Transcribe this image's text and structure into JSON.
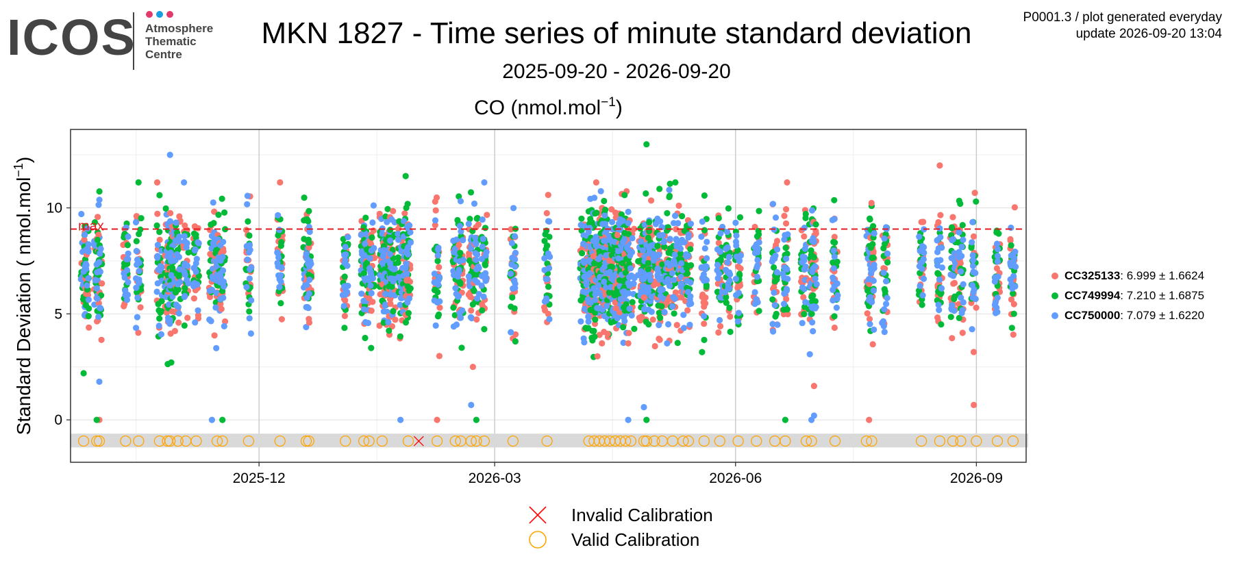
{
  "logo": {
    "text": "ICOS",
    "sub": [
      "Atmosphere",
      "Thematic",
      "Centre"
    ],
    "dots": [
      "#e23a6b",
      "#1a9ee0",
      "#e23a6b"
    ]
  },
  "header": {
    "title": "MKN 1827 - Time series of minute standard deviation",
    "subtitle": "2025-09-20 - 2026-09-20",
    "plot_id": "P0001.3 / plot generated everyday",
    "update": "update  2026-09-20 13:04"
  },
  "chart_data": {
    "type": "scatter",
    "panel_title": "CO (nmol.mol",
    "panel_title_sup": "−1",
    "panel_title_end": ")",
    "ylabel": "Standard Deviation ( nmol.mol",
    "ylabel_sup": "−1",
    "ylabel_end": ")",
    "ylim": [
      -2,
      13.7
    ],
    "yticks": [
      0,
      5,
      10
    ],
    "x_range": [
      "2025-09-20",
      "2026-09-20"
    ],
    "xticks": [
      {
        "label": "2025-12",
        "date": "2025-12-01"
      },
      {
        "label": "2026-03",
        "date": "2026-03-01"
      },
      {
        "label": "2026-06",
        "date": "2026-06-01"
      },
      {
        "label": "2026-09",
        "date": "2026-09-01"
      }
    ],
    "grid": true,
    "max_line": {
      "label": "max",
      "value": 9,
      "color": "#e41a1c"
    },
    "calibration_band": [
      -1.3,
      -0.65
    ],
    "series": [
      {
        "name": "CC325133",
        "stats": ": 6.999 ± 1.6624",
        "color": "#f8766d",
        "mean": 6.999,
        "sd": 1.6624
      },
      {
        "name": "CC749994",
        "stats": ": 7.210 ± 1.6875",
        "color": "#00ba38",
        "mean": 7.21,
        "sd": 1.6875
      },
      {
        "name": "CC750000",
        "stats": ": 7.079 ± 1.6220",
        "color": "#619cff",
        "mean": 7.079,
        "sd": 1.622
      }
    ],
    "measurement_dates": [
      "2025-09-25",
      "2025-09-26",
      "2025-09-30",
      "2025-10-01",
      "2025-10-11",
      "2025-10-16",
      "2025-10-24",
      "2025-10-27",
      "2025-10-28",
      "2025-10-29",
      "2025-10-31",
      "2025-11-03",
      "2025-11-07",
      "2025-11-13",
      "2025-11-15",
      "2025-11-17",
      "2025-11-27",
      "2025-12-09",
      "2025-12-19",
      "2025-12-20",
      "2026-01-03",
      "2026-01-10",
      "2026-01-11",
      "2026-01-13",
      "2026-01-17",
      "2026-01-18",
      "2026-01-20",
      "2026-01-21",
      "2026-01-24",
      "2026-01-26",
      "2026-01-27",
      "2026-02-07",
      "2026-02-14",
      "2026-02-16",
      "2026-02-20",
      "2026-02-22",
      "2026-02-25",
      "2026-03-08",
      "2026-03-21",
      "2026-04-05",
      "2026-04-06",
      "2026-04-08",
      "2026-04-10",
      "2026-04-12",
      "2026-04-14",
      "2026-04-16",
      "2026-04-18",
      "2026-04-19",
      "2026-04-21",
      "2026-04-27",
      "2026-04-28",
      "2026-05-01",
      "2026-05-04",
      "2026-05-08",
      "2026-05-12",
      "2026-05-14",
      "2026-05-20",
      "2026-05-26",
      "2026-05-29",
      "2026-06-02",
      "2026-06-09",
      "2026-06-16",
      "2026-06-20",
      "2026-06-27",
      "2026-06-30",
      "2026-07-01",
      "2026-07-09",
      "2026-07-22",
      "2026-07-23",
      "2026-07-28",
      "2026-08-11",
      "2026-08-18",
      "2026-08-23",
      "2026-08-26",
      "2026-08-31",
      "2026-09-09",
      "2026-09-15"
    ],
    "outliers": [
      {
        "date": "2025-10-01",
        "y": 0.0,
        "series": 0
      },
      {
        "date": "2025-09-30",
        "y": 0.0,
        "series": 1
      },
      {
        "date": "2025-10-01",
        "y": 1.8,
        "series": 2
      },
      {
        "date": "2025-09-25",
        "y": 2.2,
        "series": 1
      },
      {
        "date": "2025-10-28",
        "y": 12.5,
        "series": 2
      },
      {
        "date": "2025-11-13",
        "y": 0.0,
        "series": 2
      },
      {
        "date": "2025-11-17",
        "y": 0.0,
        "series": 1
      },
      {
        "date": "2026-01-24",
        "y": 0.0,
        "series": 2
      },
      {
        "date": "2026-02-07",
        "y": 0.0,
        "series": 0
      },
      {
        "date": "2026-02-22",
        "y": 0.0,
        "series": 1
      },
      {
        "date": "2026-02-20",
        "y": 0.7,
        "series": 2
      },
      {
        "date": "2026-04-21",
        "y": 0.0,
        "series": 2
      },
      {
        "date": "2026-04-28",
        "y": 0.0,
        "series": 1
      },
      {
        "date": "2026-04-27",
        "y": 0.6,
        "series": 2
      },
      {
        "date": "2026-04-28",
        "y": 13.0,
        "series": 1
      },
      {
        "date": "2026-06-20",
        "y": 0.0,
        "series": 1
      },
      {
        "date": "2026-06-30",
        "y": 0.0,
        "series": 2
      },
      {
        "date": "2026-07-01",
        "y": 1.6,
        "series": 0
      },
      {
        "date": "2026-07-22",
        "y": 0.0,
        "series": 0
      },
      {
        "date": "2026-08-18",
        "y": 12.0,
        "series": 0
      },
      {
        "date": "2026-08-31",
        "y": 0.7,
        "series": 0
      },
      {
        "date": "2026-07-01",
        "y": 0.2,
        "series": 2
      },
      {
        "date": "2025-10-24",
        "y": 10.6,
        "series": 1
      },
      {
        "date": "2026-01-26",
        "y": 11.5,
        "series": 1
      },
      {
        "date": "2025-12-09",
        "y": 11.2,
        "series": 0
      }
    ],
    "calibrations": {
      "valid_dates": [
        "2025-09-25",
        "2025-09-30",
        "2025-10-01",
        "2025-10-11",
        "2025-10-16",
        "2025-10-24",
        "2025-10-27",
        "2025-10-28",
        "2025-10-31",
        "2025-11-03",
        "2025-11-07",
        "2025-11-15",
        "2025-11-17",
        "2025-11-27",
        "2025-12-09",
        "2025-12-19",
        "2025-12-20",
        "2026-01-03",
        "2026-01-10",
        "2026-01-12",
        "2026-01-17",
        "2026-01-27",
        "2026-02-07",
        "2026-02-14",
        "2026-02-16",
        "2026-02-20",
        "2026-02-22",
        "2026-02-25",
        "2026-03-08",
        "2026-03-21",
        "2026-04-06",
        "2026-04-08",
        "2026-04-10",
        "2026-04-12",
        "2026-04-14",
        "2026-04-16",
        "2026-04-18",
        "2026-04-20",
        "2026-04-22",
        "2026-04-27",
        "2026-04-28",
        "2026-05-01",
        "2026-05-04",
        "2026-05-08",
        "2026-05-12",
        "2026-05-14",
        "2026-05-20",
        "2026-05-26",
        "2026-06-02",
        "2026-06-09",
        "2026-06-16",
        "2026-06-20",
        "2026-06-28",
        "2026-06-30",
        "2026-07-09",
        "2026-07-21",
        "2026-07-23",
        "2026-08-11",
        "2026-08-18",
        "2026-08-23",
        "2026-08-26",
        "2026-09-01",
        "2026-09-09",
        "2026-09-15"
      ],
      "invalid_dates": [
        "2026-01-31"
      ],
      "y": -1
    }
  },
  "legend_bottom": {
    "invalid": "Invalid Calibration",
    "valid": "Valid Calibration"
  },
  "colors": {
    "valid_cal": "#ffa500",
    "invalid_cal": "#ff0000",
    "band": "#d9d9d9",
    "panel_border": "#333333",
    "grid_major": "#cccccc",
    "grid_minor": "#eeeeee"
  }
}
